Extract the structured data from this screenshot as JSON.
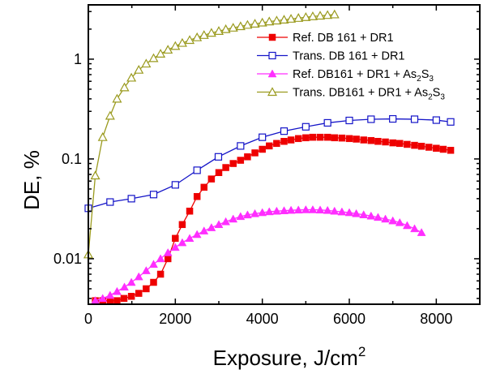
{
  "chart_data": {
    "type": "scatter",
    "title": "",
    "xlabel": "Exposure, J/cm",
    "xlabel_sup": "2",
    "ylabel": "DE, %",
    "xlim": [
      0,
      9000
    ],
    "ylim": [
      0.0035,
      3.5
    ],
    "y_scale": "log",
    "x_ticks": [
      0,
      2000,
      4000,
      6000,
      8000
    ],
    "x_tick_labels": [
      "0",
      "2000",
      "4000",
      "6000",
      "8000"
    ],
    "y_ticks": [
      0.01,
      0.1,
      1
    ],
    "y_tick_labels": [
      "0.01",
      "0.1",
      "1"
    ],
    "grid": false,
    "legend_position": "top-right",
    "series": [
      {
        "name": "Ref. DB 161 + DR1",
        "name_parts": [
          {
            "t": "Ref. DB 161 + DR1"
          }
        ],
        "color": "#ee0000",
        "marker": "square-filled",
        "x": [
          160,
          330,
          500,
          660,
          820,
          990,
          1160,
          1330,
          1500,
          1660,
          1830,
          2000,
          2160,
          2330,
          2500,
          2660,
          2830,
          3000,
          3160,
          3330,
          3500,
          3660,
          3830,
          4000,
          4160,
          4330,
          4500,
          4660,
          4830,
          5000,
          5160,
          5330,
          5500,
          5660,
          5830,
          6000,
          6160,
          6330,
          6500,
          6660,
          6830,
          7000,
          7160,
          7330,
          7500,
          7660,
          7830,
          8000,
          8160,
          8330
        ],
        "y": [
          0.0038,
          0.0038,
          0.0038,
          0.0038,
          0.004,
          0.0042,
          0.0045,
          0.005,
          0.0058,
          0.007,
          0.01,
          0.016,
          0.022,
          0.03,
          0.042,
          0.052,
          0.063,
          0.073,
          0.082,
          0.09,
          0.097,
          0.105,
          0.115,
          0.125,
          0.135,
          0.143,
          0.15,
          0.155,
          0.16,
          0.163,
          0.165,
          0.165,
          0.165,
          0.163,
          0.162,
          0.16,
          0.158,
          0.155,
          0.153,
          0.15,
          0.148,
          0.145,
          0.143,
          0.14,
          0.137,
          0.134,
          0.131,
          0.128,
          0.125,
          0.122
        ]
      },
      {
        "name": "Trans. DB 161 + DR1",
        "name_parts": [
          {
            "t": "Trans. DB 161 + DR1"
          }
        ],
        "color": "#1414c8",
        "marker": "square-open",
        "x": [
          0,
          500,
          990,
          1500,
          2000,
          2500,
          2990,
          3500,
          4000,
          4500,
          5000,
          5500,
          6000,
          6500,
          7000,
          7500,
          8000,
          8330
        ],
        "y": [
          0.032,
          0.037,
          0.04,
          0.044,
          0.055,
          0.077,
          0.105,
          0.135,
          0.165,
          0.19,
          0.21,
          0.23,
          0.243,
          0.25,
          0.252,
          0.25,
          0.245,
          0.235
        ]
      },
      {
        "name": "Ref. DB161 + DR1 + As2S3",
        "name_parts": [
          {
            "t": "Ref. DB161 + DR1 + As"
          },
          {
            "t": "2",
            "sub": true
          },
          {
            "t": "S"
          },
          {
            "t": "3",
            "sub": true
          }
        ],
        "color": "#ff2eff",
        "marker": "triangle-filled",
        "x": [
          160,
          330,
          500,
          660,
          830,
          990,
          1160,
          1330,
          1500,
          1660,
          1830,
          2000,
          2160,
          2330,
          2500,
          2660,
          2830,
          3000,
          3160,
          3330,
          3500,
          3660,
          3830,
          4000,
          4160,
          4330,
          4500,
          4660,
          4830,
          5000,
          5160,
          5330,
          5500,
          5660,
          5830,
          6000,
          6160,
          6330,
          6500,
          6660,
          6830,
          7000,
          7160,
          7330,
          7500,
          7660
        ],
        "y": [
          0.0038,
          0.004,
          0.0043,
          0.0047,
          0.0052,
          0.0058,
          0.0066,
          0.0076,
          0.0088,
          0.01,
          0.0115,
          0.013,
          0.0145,
          0.016,
          0.0175,
          0.019,
          0.0205,
          0.022,
          0.0235,
          0.025,
          0.0265,
          0.0275,
          0.0283,
          0.029,
          0.0296,
          0.03,
          0.0303,
          0.0306,
          0.0308,
          0.031,
          0.031,
          0.0308,
          0.0305,
          0.03,
          0.0295,
          0.029,
          0.0283,
          0.0276,
          0.0268,
          0.026,
          0.025,
          0.024,
          0.023,
          0.0215,
          0.02,
          0.0183
        ]
      },
      {
        "name": "Trans. DB161 + DR1 + As2S3",
        "name_parts": [
          {
            "t": "Trans. DB161 + DR1 + As"
          },
          {
            "t": "2",
            "sub": true
          },
          {
            "t": "S"
          },
          {
            "t": "3",
            "sub": true
          }
        ],
        "color": "#9a9a1e",
        "marker": "triangle-open",
        "x": [
          0,
          160,
          330,
          500,
          660,
          830,
          990,
          1160,
          1330,
          1500,
          1660,
          1830,
          2000,
          2160,
          2330,
          2500,
          2660,
          2830,
          3000,
          3160,
          3330,
          3500,
          3660,
          3830,
          4000,
          4160,
          4330,
          4500,
          4660,
          4830,
          5000,
          5160,
          5330,
          5500,
          5660
        ],
        "y": [
          0.011,
          0.068,
          0.165,
          0.27,
          0.4,
          0.52,
          0.65,
          0.78,
          0.9,
          1.02,
          1.13,
          1.24,
          1.35,
          1.45,
          1.55,
          1.65,
          1.74,
          1.83,
          1.91,
          1.99,
          2.06,
          2.13,
          2.2,
          2.26,
          2.32,
          2.38,
          2.43,
          2.48,
          2.53,
          2.58,
          2.63,
          2.68,
          2.72,
          2.76,
          2.8
        ]
      }
    ]
  }
}
